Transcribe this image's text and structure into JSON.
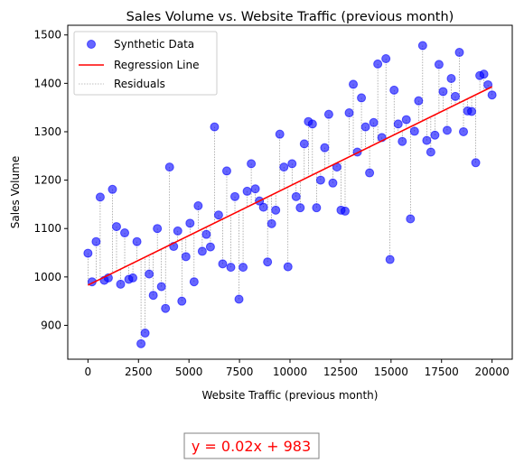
{
  "chart_data": {
    "type": "scatter",
    "title": "Sales Volume vs. Website Traffic (previous month)",
    "xlabel": "Website Traffic (previous month)",
    "ylabel": "Sales Volume",
    "xlim": [
      -1000,
      21000
    ],
    "ylim": [
      830,
      1520
    ],
    "xticks": [
      0,
      2500,
      5000,
      7500,
      10000,
      12500,
      15000,
      17500,
      20000
    ],
    "yticks": [
      900,
      1000,
      1100,
      1200,
      1300,
      1400,
      1500
    ],
    "grid": false,
    "legend_position": "top-left",
    "series": [
      {
        "name": "Synthetic Data",
        "type": "scatter",
        "color": "#0000ff",
        "x": [
          0,
          202,
          404,
          606,
          808,
          1010,
          1212,
          1414,
          1616,
          1818,
          2020,
          2222,
          2424,
          2626,
          2828,
          3030,
          3232,
          3434,
          3636,
          3838,
          4040,
          4242,
          4444,
          4646,
          4848,
          5051,
          5253,
          5455,
          5657,
          5859,
          6061,
          6263,
          6465,
          6667,
          6869,
          7071,
          7273,
          7475,
          7677,
          7879,
          8081,
          8283,
          8485,
          8687,
          8889,
          9091,
          9293,
          9495,
          9697,
          9899,
          10101,
          10303,
          10505,
          10707,
          10909,
          11111,
          11313,
          11515,
          11717,
          11919,
          12121,
          12323,
          12525,
          12727,
          12929,
          13131,
          13333,
          13535,
          13737,
          13939,
          14141,
          14343,
          14545,
          14747,
          14949,
          15152,
          15354,
          15556,
          15758,
          15960,
          16162,
          16364,
          16566,
          16768,
          16970,
          17172,
          17374,
          17576,
          17778,
          17980,
          18182,
          18384,
          18586,
          18788,
          18990,
          19192,
          19394,
          19596,
          19798,
          20000
        ],
        "y": [
          1049,
          990,
          1073,
          1165,
          993,
          998,
          1181,
          1104,
          985,
          1091,
          995,
          998,
          1073,
          862,
          884,
          1006,
          962,
          1100,
          980,
          935,
          1227,
          1063,
          1095,
          950,
          1042,
          1111,
          990,
          1147,
          1053,
          1088,
          1062,
          1310,
          1128,
          1027,
          1219,
          1020,
          1166,
          954,
          1020,
          1177,
          1234,
          1182,
          1157,
          1144,
          1031,
          1110,
          1138,
          1295,
          1227,
          1021,
          1234,
          1166,
          1143,
          1275,
          1321,
          1316,
          1143,
          1200,
          1267,
          1336,
          1194,
          1227,
          1138,
          1136,
          1339,
          1398,
          1258,
          1370,
          1310,
          1215,
          1319,
          1440,
          1288,
          1451,
          1036,
          1386,
          1316,
          1280,
          1325,
          1120,
          1301,
          1364,
          1478,
          1282,
          1258,
          1293,
          1439,
          1383,
          1303,
          1410,
          1373,
          1464,
          1300,
          1343,
          1342,
          1236,
          1416,
          1419,
          1397,
          1376
        ]
      },
      {
        "name": "Regression Line",
        "type": "line",
        "color": "#ff0000",
        "x": [
          0,
          20000
        ],
        "y": [
          983,
          1393
        ]
      },
      {
        "name": "Residuals",
        "type": "line",
        "color": "#808080",
        "style": "dotted"
      }
    ],
    "regression": {
      "slope": 0.0205,
      "intercept": 983
    }
  },
  "annotation": {
    "text": "y = 0.02x + 983",
    "color": "#ff0000"
  }
}
